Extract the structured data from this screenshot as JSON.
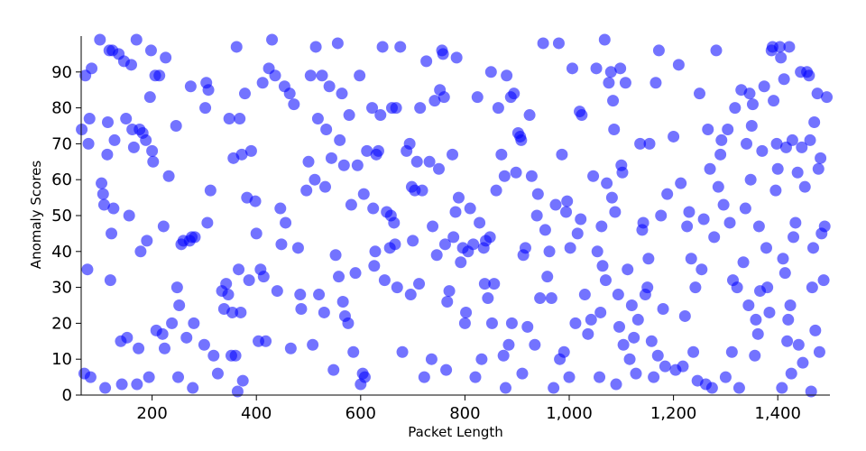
{
  "chart_data": {
    "type": "scatter",
    "title": "",
    "xlabel": "Packet Length",
    "ylabel": "Anomaly Scores",
    "xlim": [
      64,
      1500
    ],
    "ylim": [
      0,
      100
    ],
    "x_ticks": [
      200,
      400,
      600,
      800,
      1000,
      1200,
      1400
    ],
    "x_tick_labels": [
      "200",
      "400",
      "600",
      "800",
      "1,000",
      "1,200",
      "1,400"
    ],
    "y_ticks": [
      0,
      10,
      20,
      30,
      40,
      50,
      60,
      70,
      80,
      90
    ],
    "y_tick_labels": [
      "0",
      "10",
      "20",
      "30",
      "40",
      "50",
      "60",
      "70",
      "80",
      "90"
    ],
    "grid": false,
    "legend": "none",
    "colors": {
      "point": "#0000ff"
    },
    "points": [
      [
        65,
        74
      ],
      [
        70,
        6
      ],
      [
        72,
        89
      ],
      [
        76,
        35
      ],
      [
        78,
        70
      ],
      [
        80,
        77
      ],
      [
        82,
        5
      ],
      [
        84,
        91
      ],
      [
        100,
        99
      ],
      [
        103,
        59
      ],
      [
        106,
        56
      ],
      [
        108,
        53
      ],
      [
        110,
        2
      ],
      [
        114,
        67
      ],
      [
        115,
        76
      ],
      [
        118,
        96
      ],
      [
        120,
        32
      ],
      [
        122,
        45
      ],
      [
        124,
        96
      ],
      [
        126,
        52
      ],
      [
        128,
        71
      ],
      [
        136,
        95
      ],
      [
        140,
        15
      ],
      [
        142,
        3
      ],
      [
        146,
        93
      ],
      [
        150,
        77
      ],
      [
        152,
        16
      ],
      [
        156,
        50
      ],
      [
        160,
        92
      ],
      [
        162,
        74
      ],
      [
        165,
        69
      ],
      [
        170,
        99
      ],
      [
        171,
        3
      ],
      [
        174,
        13
      ],
      [
        176,
        74
      ],
      [
        178,
        40
      ],
      [
        182,
        73
      ],
      [
        188,
        71
      ],
      [
        190,
        43
      ],
      [
        194,
        5
      ],
      [
        196,
        83
      ],
      [
        198,
        96
      ],
      [
        200,
        68
      ],
      [
        202,
        65
      ],
      [
        206,
        89
      ],
      [
        208,
        18
      ],
      [
        214,
        89
      ],
      [
        220,
        17
      ],
      [
        222,
        47
      ],
      [
        224,
        13
      ],
      [
        226,
        94
      ],
      [
        232,
        61
      ],
      [
        238,
        20
      ],
      [
        246,
        75
      ],
      [
        248,
        30
      ],
      [
        250,
        5
      ],
      [
        252,
        25
      ],
      [
        256,
        42
      ],
      [
        260,
        43
      ],
      [
        266,
        16
      ],
      [
        272,
        43
      ],
      [
        274,
        86
      ],
      [
        276,
        44
      ],
      [
        278,
        2
      ],
      [
        280,
        20
      ],
      [
        282,
        44
      ],
      [
        300,
        14
      ],
      [
        302,
        80
      ],
      [
        304,
        87
      ],
      [
        306,
        48
      ],
      [
        308,
        85
      ],
      [
        312,
        57
      ],
      [
        318,
        11
      ],
      [
        326,
        6
      ],
      [
        334,
        29
      ],
      [
        338,
        24
      ],
      [
        342,
        31
      ],
      [
        346,
        28
      ],
      [
        348,
        77
      ],
      [
        352,
        11
      ],
      [
        354,
        23
      ],
      [
        356,
        66
      ],
      [
        360,
        11
      ],
      [
        362,
        97
      ],
      [
        364,
        1
      ],
      [
        366,
        35
      ],
      [
        368,
        77
      ],
      [
        370,
        23
      ],
      [
        372,
        67
      ],
      [
        374,
        4
      ],
      [
        378,
        84
      ],
      [
        382,
        55
      ],
      [
        386,
        32
      ],
      [
        390,
        68
      ],
      [
        398,
        54
      ],
      [
        400,
        45
      ],
      [
        404,
        15
      ],
      [
        408,
        35
      ],
      [
        412,
        87
      ],
      [
        414,
        33
      ],
      [
        418,
        15
      ],
      [
        424,
        91
      ],
      [
        430,
        99
      ],
      [
        436,
        89
      ],
      [
        440,
        29
      ],
      [
        446,
        52
      ],
      [
        448,
        42
      ],
      [
        454,
        86
      ],
      [
        456,
        48
      ],
      [
        464,
        84
      ],
      [
        466,
        13
      ],
      [
        472,
        81
      ],
      [
        480,
        41
      ],
      [
        484,
        28
      ],
      [
        486,
        24
      ],
      [
        496,
        57
      ],
      [
        500,
        65
      ],
      [
        504,
        89
      ],
      [
        508,
        14
      ],
      [
        512,
        60
      ],
      [
        514,
        97
      ],
      [
        518,
        77
      ],
      [
        520,
        28
      ],
      [
        526,
        89
      ],
      [
        530,
        23
      ],
      [
        532,
        58
      ],
      [
        534,
        74
      ],
      [
        540,
        86
      ],
      [
        544,
        66
      ],
      [
        548,
        7
      ],
      [
        552,
        39
      ],
      [
        556,
        98
      ],
      [
        558,
        33
      ],
      [
        560,
        71
      ],
      [
        564,
        84
      ],
      [
        566,
        26
      ],
      [
        568,
        64
      ],
      [
        570,
        22
      ],
      [
        576,
        20
      ],
      [
        578,
        78
      ],
      [
        582,
        53
      ],
      [
        586,
        12
      ],
      [
        590,
        34
      ],
      [
        594,
        64
      ],
      [
        598,
        89
      ],
      [
        600,
        3
      ],
      [
        604,
        6
      ],
      [
        606,
        56
      ],
      [
        608,
        5
      ],
      [
        612,
        68
      ],
      [
        622,
        80
      ],
      [
        624,
        52
      ],
      [
        626,
        36
      ],
      [
        628,
        40
      ],
      [
        630,
        67
      ],
      [
        634,
        68
      ],
      [
        638,
        78
      ],
      [
        642,
        97
      ],
      [
        646,
        32
      ],
      [
        650,
        51
      ],
      [
        656,
        41
      ],
      [
        658,
        50
      ],
      [
        660,
        80
      ],
      [
        664,
        48
      ],
      [
        666,
        42
      ],
      [
        668,
        80
      ],
      [
        670,
        30
      ],
      [
        676,
        97
      ],
      [
        680,
        12
      ],
      [
        688,
        68
      ],
      [
        694,
        70
      ],
      [
        696,
        28
      ],
      [
        698,
        58
      ],
      [
        700,
        43
      ],
      [
        704,
        57
      ],
      [
        708,
        65
      ],
      [
        712,
        31
      ],
      [
        714,
        80
      ],
      [
        718,
        57
      ],
      [
        722,
        5
      ],
      [
        726,
        93
      ],
      [
        732,
        65
      ],
      [
        736,
        10
      ],
      [
        738,
        47
      ],
      [
        742,
        82
      ],
      [
        746,
        39
      ],
      [
        750,
        63
      ],
      [
        752,
        85
      ],
      [
        756,
        96
      ],
      [
        758,
        95
      ],
      [
        760,
        83
      ],
      [
        762,
        42
      ],
      [
        764,
        7
      ],
      [
        766,
        26
      ],
      [
        770,
        29
      ],
      [
        776,
        67
      ],
      [
        778,
        44
      ],
      [
        782,
        51
      ],
      [
        784,
        94
      ],
      [
        788,
        55
      ],
      [
        792,
        37
      ],
      [
        796,
        41
      ],
      [
        800,
        20
      ],
      [
        802,
        23
      ],
      [
        806,
        40
      ],
      [
        810,
        52
      ],
      [
        816,
        42
      ],
      [
        820,
        5
      ],
      [
        824,
        83
      ],
      [
        828,
        48
      ],
      [
        832,
        10
      ],
      [
        836,
        41
      ],
      [
        838,
        31
      ],
      [
        840,
        43
      ],
      [
        844,
        27
      ],
      [
        848,
        44
      ],
      [
        850,
        90
      ],
      [
        852,
        20
      ],
      [
        856,
        31
      ],
      [
        860,
        57
      ],
      [
        864,
        80
      ],
      [
        870,
        67
      ],
      [
        874,
        11
      ],
      [
        876,
        61
      ],
      [
        878,
        2
      ],
      [
        880,
        89
      ],
      [
        884,
        14
      ],
      [
        888,
        83
      ],
      [
        890,
        20
      ],
      [
        894,
        84
      ],
      [
        898,
        62
      ],
      [
        902,
        73
      ],
      [
        906,
        72
      ],
      [
        908,
        71
      ],
      [
        910,
        6
      ],
      [
        912,
        39
      ],
      [
        916,
        41
      ],
      [
        920,
        19
      ],
      [
        924,
        78
      ],
      [
        928,
        61
      ],
      [
        934,
        14
      ],
      [
        938,
        50
      ],
      [
        940,
        56
      ],
      [
        944,
        27
      ],
      [
        950,
        98
      ],
      [
        954,
        46
      ],
      [
        958,
        33
      ],
      [
        962,
        40
      ],
      [
        966,
        27
      ],
      [
        970,
        2
      ],
      [
        974,
        53
      ],
      [
        980,
        98
      ],
      [
        982,
        10
      ],
      [
        986,
        67
      ],
      [
        990,
        12
      ],
      [
        994,
        51
      ],
      [
        996,
        54
      ],
      [
        1000,
        5
      ],
      [
        1002,
        41
      ],
      [
        1006,
        91
      ],
      [
        1012,
        20
      ],
      [
        1016,
        45
      ],
      [
        1020,
        79
      ],
      [
        1022,
        49
      ],
      [
        1024,
        78
      ],
      [
        1030,
        28
      ],
      [
        1036,
        17
      ],
      [
        1042,
        21
      ],
      [
        1046,
        61
      ],
      [
        1052,
        91
      ],
      [
        1054,
        40
      ],
      [
        1058,
        5
      ],
      [
        1060,
        23
      ],
      [
        1062,
        47
      ],
      [
        1064,
        36
      ],
      [
        1068,
        99
      ],
      [
        1070,
        32
      ],
      [
        1072,
        59
      ],
      [
        1076,
        87
      ],
      [
        1080,
        90
      ],
      [
        1082,
        55
      ],
      [
        1084,
        82
      ],
      [
        1086,
        74
      ],
      [
        1088,
        51
      ],
      [
        1090,
        3
      ],
      [
        1094,
        28
      ],
      [
        1096,
        19
      ],
      [
        1098,
        91
      ],
      [
        1100,
        64
      ],
      [
        1102,
        62
      ],
      [
        1104,
        14
      ],
      [
        1108,
        87
      ],
      [
        1112,
        35
      ],
      [
        1116,
        10
      ],
      [
        1120,
        25
      ],
      [
        1124,
        16
      ],
      [
        1128,
        6
      ],
      [
        1132,
        21
      ],
      [
        1136,
        70
      ],
      [
        1140,
        46
      ],
      [
        1142,
        48
      ],
      [
        1146,
        28
      ],
      [
        1150,
        30
      ],
      [
        1152,
        38
      ],
      [
        1154,
        70
      ],
      [
        1158,
        15
      ],
      [
        1162,
        5
      ],
      [
        1166,
        87
      ],
      [
        1170,
        11
      ],
      [
        1172,
        96
      ],
      [
        1176,
        50
      ],
      [
        1180,
        24
      ],
      [
        1184,
        8
      ],
      [
        1188,
        56
      ],
      [
        1200,
        72
      ],
      [
        1204,
        7
      ],
      [
        1210,
        92
      ],
      [
        1214,
        59
      ],
      [
        1218,
        8
      ],
      [
        1222,
        22
      ],
      [
        1226,
        47
      ],
      [
        1230,
        51
      ],
      [
        1234,
        38
      ],
      [
        1238,
        12
      ],
      [
        1242,
        30
      ],
      [
        1246,
        4
      ],
      [
        1250,
        84
      ],
      [
        1254,
        35
      ],
      [
        1258,
        49
      ],
      [
        1262,
        3
      ],
      [
        1266,
        74
      ],
      [
        1270,
        63
      ],
      [
        1274,
        2
      ],
      [
        1278,
        44
      ],
      [
        1282,
        96
      ],
      [
        1286,
        58
      ],
      [
        1290,
        67
      ],
      [
        1292,
        71
      ],
      [
        1296,
        53
      ],
      [
        1300,
        5
      ],
      [
        1304,
        74
      ],
      [
        1308,
        48
      ],
      [
        1312,
        12
      ],
      [
        1314,
        32
      ],
      [
        1318,
        80
      ],
      [
        1322,
        30
      ],
      [
        1326,
        2
      ],
      [
        1330,
        85
      ],
      [
        1334,
        37
      ],
      [
        1338,
        52
      ],
      [
        1340,
        70
      ],
      [
        1344,
        25
      ],
      [
        1346,
        84
      ],
      [
        1348,
        60
      ],
      [
        1350,
        75
      ],
      [
        1352,
        81
      ],
      [
        1356,
        11
      ],
      [
        1358,
        21
      ],
      [
        1362,
        17
      ],
      [
        1364,
        47
      ],
      [
        1366,
        29
      ],
      [
        1370,
        68
      ],
      [
        1374,
        86
      ],
      [
        1378,
        41
      ],
      [
        1380,
        30
      ],
      [
        1384,
        23
      ],
      [
        1388,
        96
      ],
      [
        1390,
        97
      ],
      [
        1392,
        82
      ],
      [
        1396,
        57
      ],
      [
        1398,
        70
      ],
      [
        1400,
        63
      ],
      [
        1404,
        97
      ],
      [
        1406,
        94
      ],
      [
        1408,
        2
      ],
      [
        1410,
        38
      ],
      [
        1412,
        88
      ],
      [
        1414,
        34
      ],
      [
        1416,
        69
      ],
      [
        1418,
        15
      ],
      [
        1420,
        21
      ],
      [
        1422,
        97
      ],
      [
        1424,
        25
      ],
      [
        1426,
        6
      ],
      [
        1428,
        71
      ],
      [
        1430,
        44
      ],
      [
        1434,
        48
      ],
      [
        1438,
        62
      ],
      [
        1440,
        14
      ],
      [
        1444,
        90
      ],
      [
        1446,
        69
      ],
      [
        1448,
        9
      ],
      [
        1452,
        58
      ],
      [
        1456,
        90
      ],
      [
        1460,
        89
      ],
      [
        1462,
        71
      ],
      [
        1464,
        1
      ],
      [
        1466,
        30
      ],
      [
        1468,
        41
      ],
      [
        1470,
        76
      ],
      [
        1472,
        18
      ],
      [
        1476,
        84
      ],
      [
        1478,
        63
      ],
      [
        1480,
        12
      ],
      [
        1482,
        66
      ],
      [
        1484,
        45
      ],
      [
        1488,
        32
      ],
      [
        1490,
        47
      ],
      [
        1494,
        83
      ]
    ]
  }
}
